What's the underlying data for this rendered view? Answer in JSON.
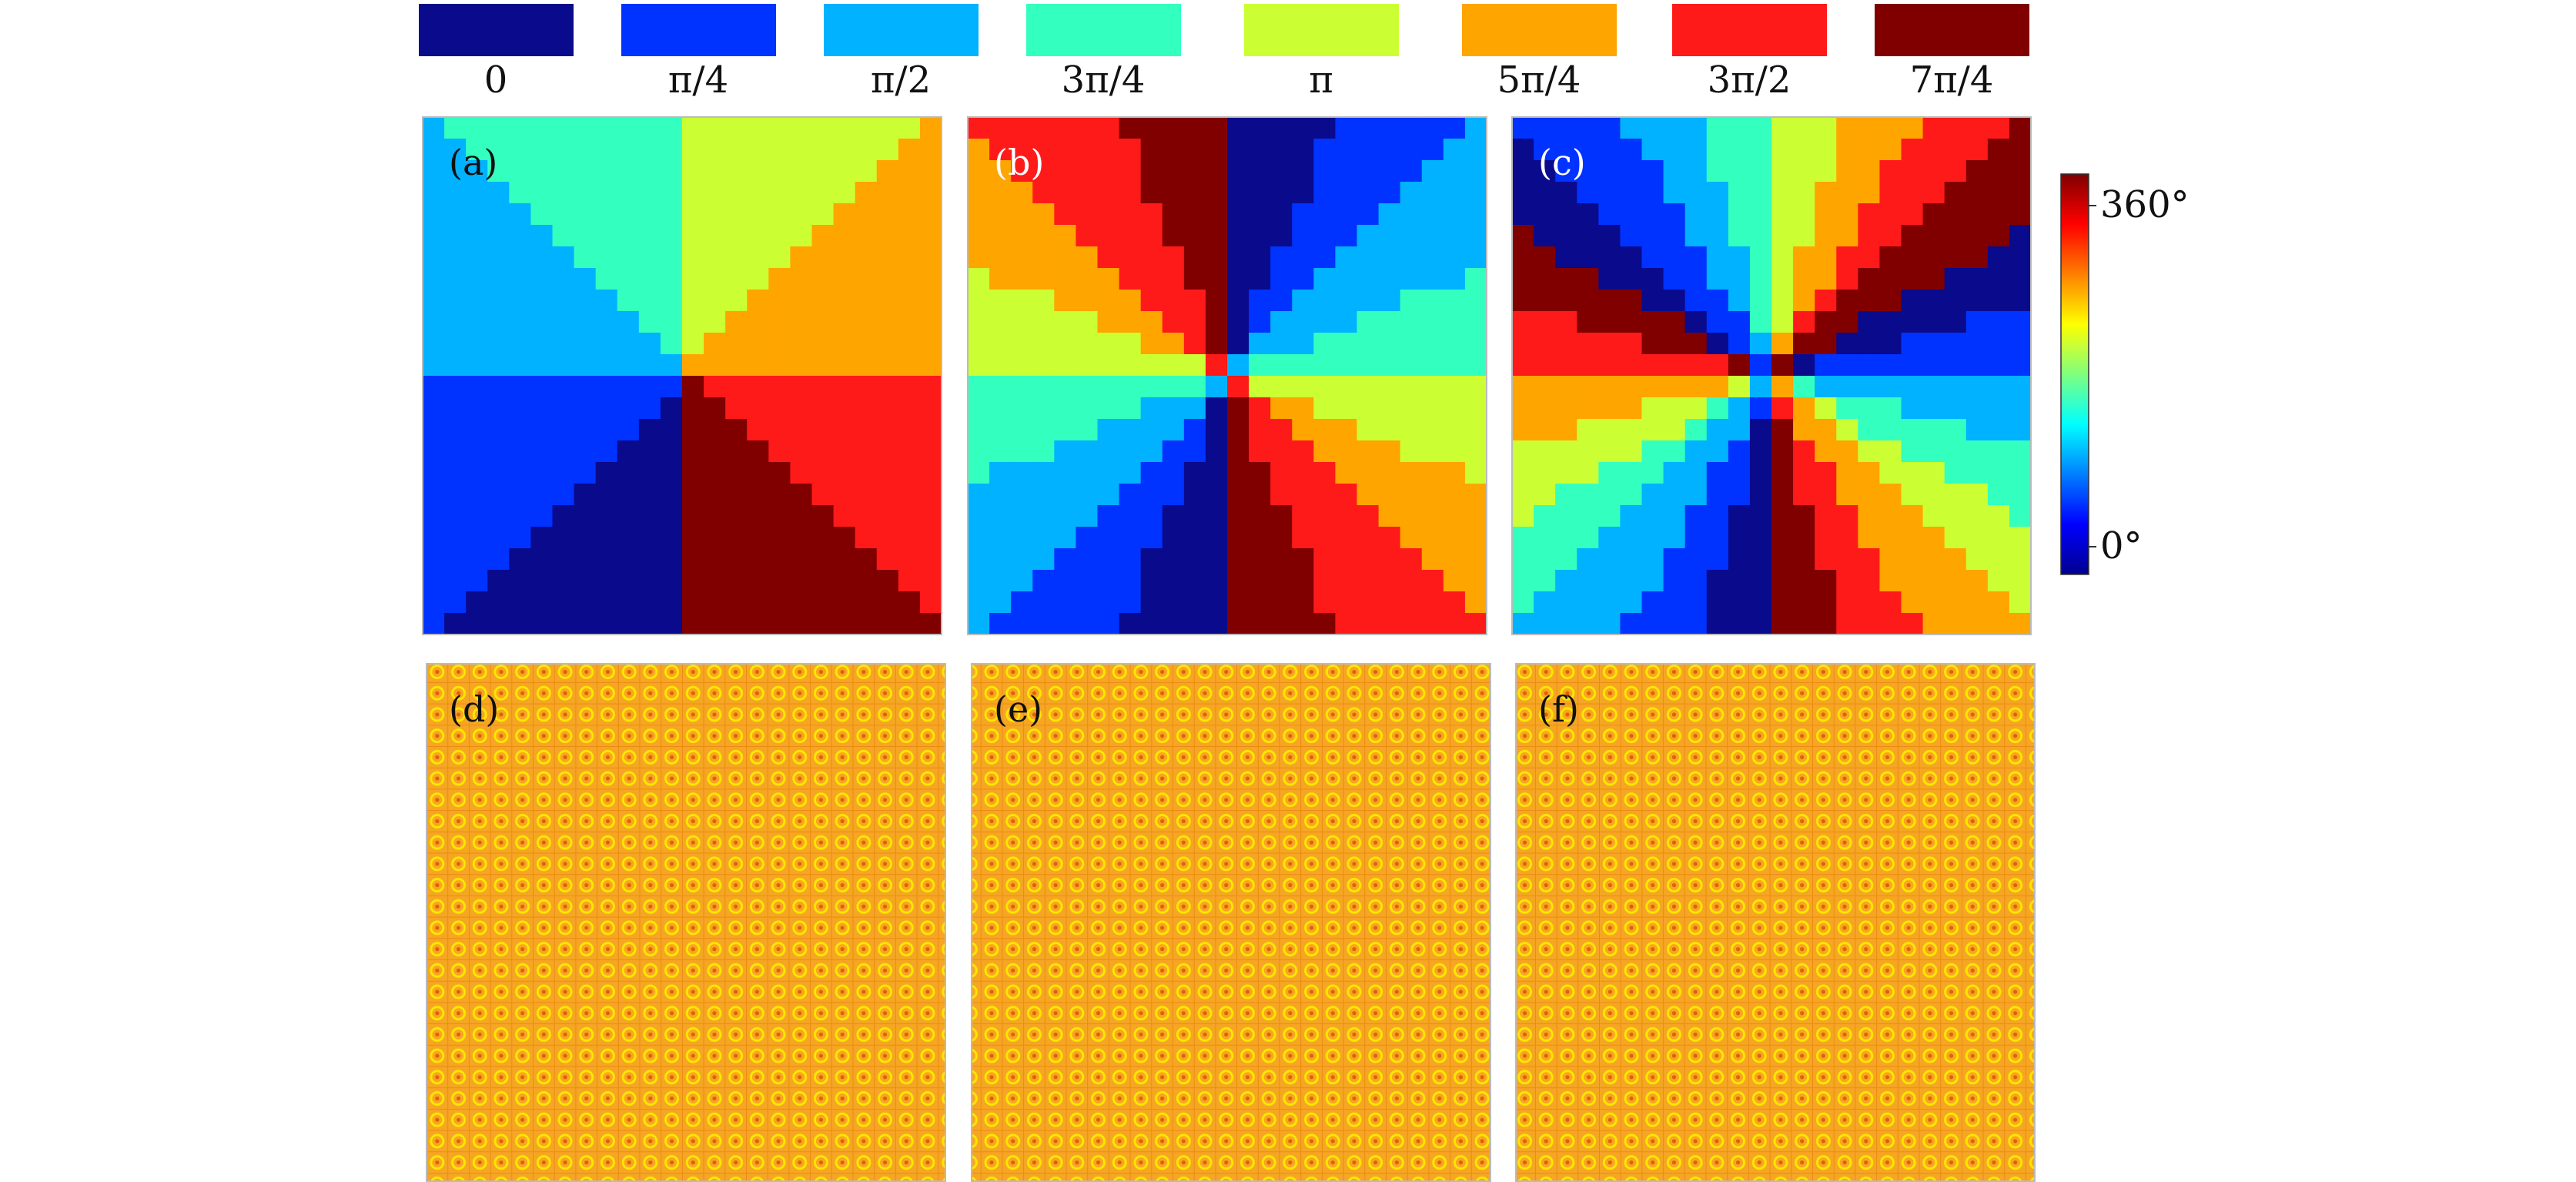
{
  "figure": {
    "legend": {
      "items": [
        {
          "label": "0",
          "color": "#0a0a8c"
        },
        {
          "label": "π/4",
          "color": "#0033ff"
        },
        {
          "label": "π/2",
          "color": "#00b2ff"
        },
        {
          "label": "3π/4",
          "color": "#33ffbf"
        },
        {
          "label": "π",
          "color": "#ccff33"
        },
        {
          "label": "5π/4",
          "color": "#ffa500"
        },
        {
          "label": "3π/2",
          "color": "#ff1a1a"
        },
        {
          "label": "7π/4",
          "color": "#800000"
        }
      ]
    },
    "colorbar": {
      "max_label": "360°",
      "min_label": "0°",
      "stops": [
        "#00008f",
        "#0000ff",
        "#007fff",
        "#00ffff",
        "#7fff7f",
        "#ffff00",
        "#ff7f00",
        "#ff0000",
        "#7f0000"
      ]
    },
    "phase_panels": [
      {
        "label": "(a)",
        "charge": 1,
        "label_color": "#111111"
      },
      {
        "label": "(b)",
        "charge": 2,
        "label_color": "#ffffff"
      },
      {
        "label": "(c)",
        "charge": 3,
        "label_color": "#ffffff"
      }
    ],
    "pattern_panels": [
      {
        "label": "(d)"
      },
      {
        "label": "(e)"
      },
      {
        "label": "(f)"
      }
    ],
    "pattern_colors": {
      "base": "#f5a623",
      "ring": "#ffe600",
      "dot": "#e85d00"
    }
  }
}
